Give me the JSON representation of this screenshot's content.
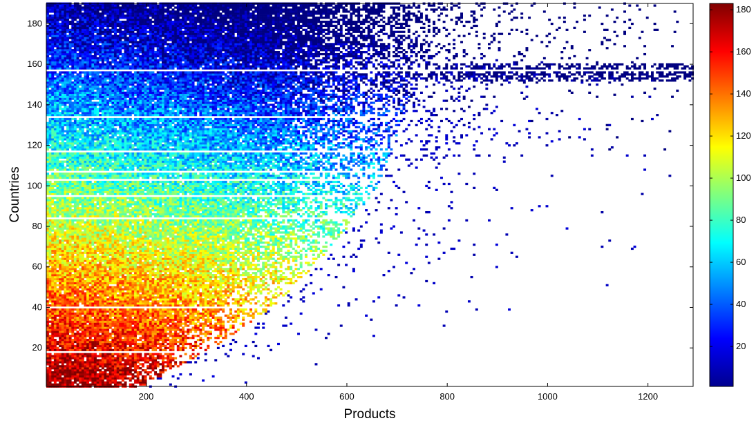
{
  "chart_data": {
    "type": "heatmap",
    "title": "",
    "xlabel": "Products",
    "ylabel": "Countries",
    "xlim": [
      1,
      1290
    ],
    "ylim": [
      1,
      190
    ],
    "xticks": [
      200,
      400,
      600,
      800,
      1000,
      1200
    ],
    "yticks": [
      20,
      40,
      60,
      80,
      100,
      120,
      140,
      160,
      180
    ],
    "colorbar": {
      "range": [
        1,
        183
      ],
      "ticks": [
        20,
        40,
        60,
        80,
        100,
        120,
        140,
        160,
        180
      ],
      "colormap": "jet",
      "position": "right"
    },
    "empty_rows": [
      18,
      40,
      84,
      95,
      103,
      107,
      117,
      134,
      157
    ],
    "frontier": [
      {
        "row": 1,
        "max_product": 190
      },
      {
        "row": 20,
        "max_product": 330
      },
      {
        "row": 40,
        "max_product": 450
      },
      {
        "row": 60,
        "max_product": 530
      },
      {
        "row": 80,
        "max_product": 600
      },
      {
        "row": 100,
        "max_product": 660
      },
      {
        "row": 120,
        "max_product": 690
      },
      {
        "row": 140,
        "max_product": 720
      },
      {
        "row": 160,
        "max_product": 760
      },
      {
        "row": 190,
        "max_product": 790
      }
    ],
    "grid": false,
    "background": "#ffffff",
    "colors": {
      "low": "#00008f",
      "mid": "#7fff7f",
      "high": "#800000"
    }
  }
}
